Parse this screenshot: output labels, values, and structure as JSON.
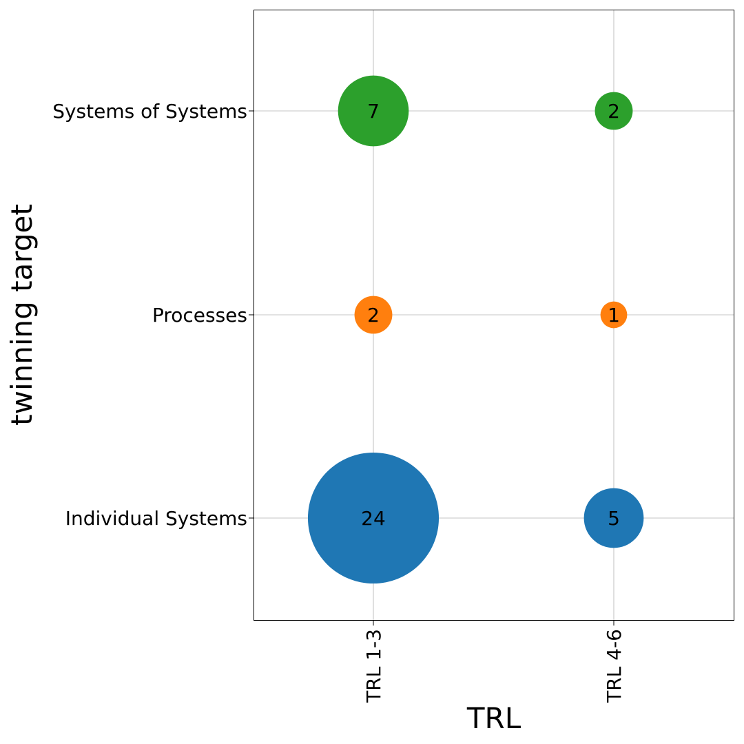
{
  "chart_data": {
    "type": "scatter",
    "subtype": "bubble",
    "xlabel": "TRL",
    "ylabel": "twinning target",
    "x_categories": [
      "TRL 1-3",
      "TRL 4-6"
    ],
    "y_categories": [
      "Individual Systems",
      "Processes",
      "Systems of Systems"
    ],
    "grid": true,
    "points": [
      {
        "x": "TRL 1-3",
        "y": "Individual Systems",
        "value": 24,
        "color": "#1f77b4"
      },
      {
        "x": "TRL 4-6",
        "y": "Individual Systems",
        "value": 5,
        "color": "#1f77b4"
      },
      {
        "x": "TRL 1-3",
        "y": "Processes",
        "value": 2,
        "color": "#ff7f0e"
      },
      {
        "x": "TRL 4-6",
        "y": "Processes",
        "value": 1,
        "color": "#ff7f0e"
      },
      {
        "x": "TRL 1-3",
        "y": "Systems of Systems",
        "value": 7,
        "color": "#2ca02c"
      },
      {
        "x": "TRL 4-6",
        "y": "Systems of Systems",
        "value": 2,
        "color": "#2ca02c"
      }
    ]
  }
}
